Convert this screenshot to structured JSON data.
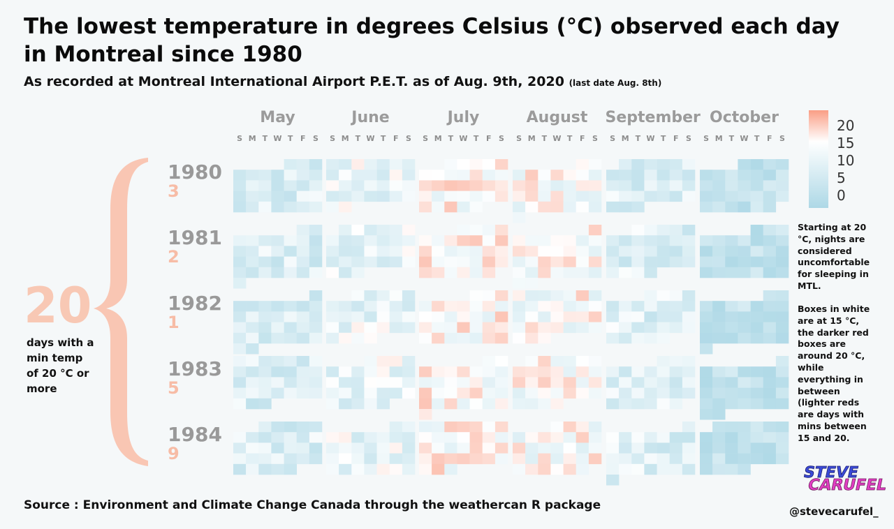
{
  "title": "The lowest temperature in degrees Celsius (°C) observed each day in Montreal since 1980",
  "subtitle": "As recorded at Montreal International Airport P.E.T. as of Aug. 9th, 2020",
  "subtitle_note": "(last date Aug. 8th)",
  "chart_data": {
    "type": "heatmap",
    "months": [
      "May",
      "June",
      "July",
      "August",
      "September",
      "October"
    ],
    "day_of_week_labels": [
      "S",
      "M",
      "T",
      "W",
      "T",
      "F",
      "S"
    ],
    "years": [
      "1980",
      "1981",
      "1982",
      "1983",
      "1984"
    ],
    "days_at_or_above_20": [
      "3",
      "2",
      "1",
      "5",
      "9"
    ],
    "color_scale": {
      "legend_ticks": [
        "20",
        "15",
        "10",
        "5",
        "0"
      ],
      "low_color": "#add8e6",
      "mid_color": "#ffffff",
      "high_color": "#fa9e85",
      "mid_value": 15,
      "range": [
        -2,
        23
      ]
    }
  },
  "summary": {
    "total": "20",
    "caption": "days with a min temp of 20 °C or more"
  },
  "notes": [
    "Starting at 20 °C, nights are considered uncomfortable for sleeping in MTL.",
    "Boxes in white are at 15 °C, the darker red boxes are around 20 °C, while everything in between (lighter reds are days with mins between 15 and 20."
  ],
  "source": "Source : Environment and Climate Change Canada through the weathercan R package",
  "handle": "@stevecarufel_",
  "logo": {
    "line1": "STEVE",
    "line2": "CARUFEL"
  }
}
